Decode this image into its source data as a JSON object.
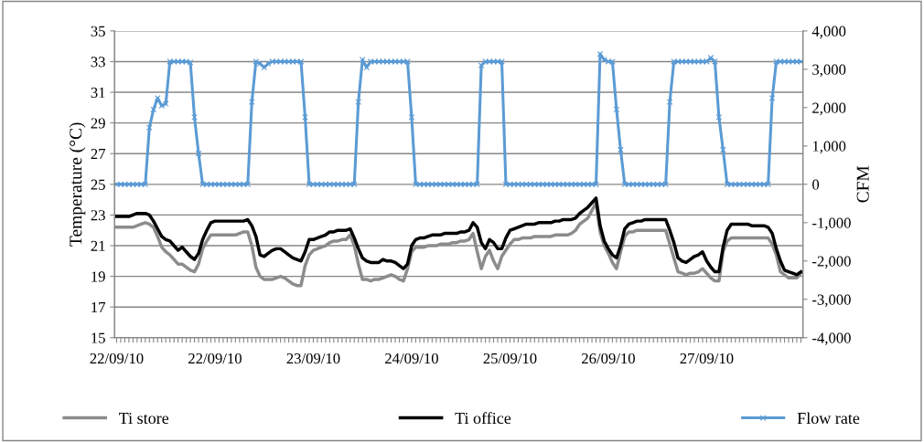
{
  "chart_data": {
    "type": "line",
    "ylabel": "Temperature (°C)",
    "y2label": "CFM",
    "categories": [
      "22/09/10",
      null,
      null,
      null,
      null,
      null,
      null,
      null,
      null,
      null,
      null,
      null,
      null,
      null,
      null,
      null,
      null,
      null,
      null,
      null,
      null,
      null,
      null,
      null,
      "22/09/10",
      null,
      null,
      null,
      null,
      null,
      null,
      null,
      null,
      null,
      null,
      null,
      null,
      null,
      null,
      null,
      null,
      null,
      null,
      null,
      null,
      null,
      null,
      null,
      "23/09/10",
      null,
      null,
      null,
      null,
      null,
      null,
      null,
      null,
      null,
      null,
      null,
      null,
      null,
      null,
      null,
      null,
      null,
      null,
      null,
      null,
      null,
      null,
      null,
      "24/09/10",
      null,
      null,
      null,
      null,
      null,
      null,
      null,
      null,
      null,
      null,
      null,
      null,
      null,
      null,
      null,
      null,
      null,
      null,
      null,
      null,
      null,
      null,
      null,
      "25/09/10",
      null,
      null,
      null,
      null,
      null,
      null,
      null,
      null,
      null,
      null,
      null,
      null,
      null,
      null,
      null,
      null,
      null,
      null,
      null,
      null,
      null,
      null,
      null,
      "26/09/10",
      null,
      null,
      null,
      null,
      null,
      null,
      null,
      null,
      null,
      null,
      null,
      null,
      null,
      null,
      null,
      null,
      null,
      null,
      null,
      null,
      null,
      null,
      null,
      "27/09/10",
      null,
      null,
      null,
      null,
      null,
      null,
      null,
      null,
      null,
      null,
      null,
      null,
      null,
      null,
      null,
      null,
      null,
      null,
      null,
      null,
      null,
      null,
      null
    ],
    "ylim": [
      15,
      35
    ],
    "yticks": [
      15,
      17,
      19,
      21,
      23,
      25,
      27,
      29,
      31,
      33,
      35
    ],
    "y2lim": [
      -4000,
      4000
    ],
    "y2ticks": [
      {
        "value": -4000,
        "label": "-4,000"
      },
      {
        "value": -3000,
        "label": "-3,000"
      },
      {
        "value": -2000,
        "label": "-2,000"
      },
      {
        "value": -1000,
        "label": "-1,000"
      },
      {
        "value": 0,
        "label": "0"
      },
      {
        "value": 1000,
        "label": "1,000"
      },
      {
        "value": 2000,
        "label": "2,000"
      },
      {
        "value": 3000,
        "label": "3,000"
      },
      {
        "value": 4000,
        "label": "4,000"
      }
    ],
    "grid": "y",
    "legend": "bottom",
    "series": [
      {
        "name": "Ti store",
        "color": "#8c8c8c",
        "marker": "none",
        "values": [
          22.2,
          22.2,
          22.2,
          22.2,
          22.2,
          22.3,
          22.4,
          22.5,
          22.4,
          22.2,
          21.6,
          20.9,
          20.6,
          20.4,
          20.1,
          19.8,
          19.8,
          19.6,
          19.4,
          19.3,
          19.8,
          20.8,
          21.3,
          21.7,
          21.7,
          21.7,
          21.7,
          21.7,
          21.7,
          21.7,
          21.8,
          21.9,
          21.9,
          21.0,
          19.6,
          19.0,
          18.8,
          18.8,
          18.8,
          18.9,
          19.0,
          18.9,
          18.7,
          18.5,
          18.4,
          18.4,
          19.7,
          20.4,
          20.7,
          20.8,
          20.9,
          21.0,
          21.2,
          21.3,
          21.3,
          21.4,
          21.4,
          21.7,
          21.0,
          19.8,
          18.8,
          18.8,
          18.7,
          18.8,
          18.8,
          18.9,
          19.0,
          19.1,
          19.0,
          18.8,
          18.7,
          19.5,
          20.6,
          20.9,
          20.9,
          20.9,
          21.0,
          21.0,
          21.0,
          21.1,
          21.1,
          21.1,
          21.2,
          21.2,
          21.3,
          21.3,
          21.4,
          21.8,
          20.6,
          19.5,
          20.3,
          20.7,
          20.0,
          19.5,
          20.3,
          20.7,
          21.1,
          21.4,
          21.4,
          21.5,
          21.5,
          21.5,
          21.6,
          21.6,
          21.6,
          21.6,
          21.6,
          21.7,
          21.7,
          21.7,
          21.7,
          21.8,
          22.0,
          22.4,
          22.6,
          22.8,
          23.3,
          23.8,
          21.9,
          21.0,
          20.5,
          19.9,
          19.5,
          20.6,
          21.6,
          21.9,
          21.9,
          22.0,
          22.0,
          22.0,
          22.0,
          22.0,
          22.0,
          22.0,
          22.0,
          21.1,
          20.2,
          19.3,
          19.2,
          19.1,
          19.2,
          19.2,
          19.3,
          19.5,
          19.2,
          18.9,
          18.7,
          18.7,
          20.6,
          21.3,
          21.5,
          21.5,
          21.5,
          21.5,
          21.5,
          21.5,
          21.5,
          21.5,
          21.5,
          21.5,
          21.1,
          20.4,
          19.3,
          19.1,
          18.9,
          18.9,
          18.9,
          19.2
        ]
      },
      {
        "name": "Ti office",
        "color": "#000000",
        "marker": "none",
        "values": [
          22.9,
          22.9,
          22.9,
          22.9,
          23.0,
          23.1,
          23.1,
          23.1,
          23.0,
          22.6,
          22.1,
          21.6,
          21.4,
          21.3,
          21.0,
          20.7,
          20.9,
          20.6,
          20.3,
          20.1,
          20.5,
          21.4,
          22.0,
          22.5,
          22.6,
          22.6,
          22.6,
          22.6,
          22.6,
          22.6,
          22.6,
          22.6,
          22.7,
          22.3,
          21.6,
          20.4,
          20.3,
          20.5,
          20.7,
          20.8,
          20.8,
          20.6,
          20.4,
          20.2,
          20.1,
          20.0,
          20.6,
          21.4,
          21.4,
          21.5,
          21.6,
          21.7,
          21.9,
          21.9,
          22.0,
          22.0,
          22.0,
          22.1,
          21.5,
          20.8,
          20.2,
          20.0,
          19.9,
          19.9,
          19.9,
          20.1,
          20.0,
          20.0,
          19.9,
          19.7,
          19.5,
          19.8,
          21.0,
          21.4,
          21.5,
          21.5,
          21.6,
          21.7,
          21.7,
          21.7,
          21.8,
          21.8,
          21.8,
          21.8,
          21.9,
          21.9,
          22.0,
          22.5,
          22.2,
          21.2,
          20.8,
          21.4,
          21.2,
          20.8,
          20.8,
          21.5,
          22.0,
          22.1,
          22.2,
          22.3,
          22.4,
          22.4,
          22.4,
          22.5,
          22.5,
          22.5,
          22.5,
          22.6,
          22.6,
          22.7,
          22.7,
          22.7,
          22.8,
          23.1,
          23.3,
          23.5,
          23.8,
          24.1,
          22.3,
          21.3,
          20.8,
          20.4,
          20.2,
          21.0,
          22.1,
          22.4,
          22.5,
          22.6,
          22.6,
          22.7,
          22.7,
          22.7,
          22.7,
          22.7,
          22.7,
          22.0,
          21.2,
          20.2,
          20.0,
          19.9,
          20.1,
          20.3,
          20.4,
          20.6,
          20.0,
          19.6,
          19.3,
          19.3,
          20.9,
          22.0,
          22.4,
          22.4,
          22.4,
          22.4,
          22.4,
          22.3,
          22.3,
          22.3,
          22.3,
          22.2,
          21.8,
          20.8,
          20.0,
          19.4,
          19.3,
          19.2,
          19.1,
          19.3
        ]
      },
      {
        "name": "Flow rate",
        "color": "#5b9bd5",
        "axis": "y2",
        "marker": "cross",
        "values": [
          0,
          0,
          0,
          0,
          0,
          0,
          0,
          0,
          1480,
          1950,
          2250,
          2050,
          2100,
          3200,
          3200,
          3200,
          3200,
          3200,
          3180,
          1750,
          800,
          0,
          0,
          0,
          0,
          0,
          0,
          0,
          0,
          0,
          0,
          0,
          0,
          2150,
          3200,
          3150,
          3050,
          3150,
          3200,
          3200,
          3200,
          3200,
          3200,
          3200,
          3200,
          3200,
          1750,
          0,
          0,
          0,
          0,
          0,
          0,
          0,
          0,
          0,
          0,
          0,
          0,
          2150,
          3250,
          3050,
          3200,
          3200,
          3200,
          3200,
          3200,
          3200,
          3200,
          3200,
          3200,
          3200,
          1750,
          0,
          0,
          0,
          0,
          0,
          0,
          0,
          0,
          0,
          0,
          0,
          0,
          0,
          0,
          0,
          0,
          3100,
          3200,
          3200,
          3200,
          3200,
          3200,
          0,
          0,
          0,
          0,
          0,
          0,
          0,
          0,
          0,
          0,
          0,
          0,
          0,
          0,
          0,
          0,
          0,
          0,
          0,
          0,
          0,
          0,
          0,
          3400,
          3250,
          3200,
          3200,
          1950,
          900,
          0,
          0,
          0,
          0,
          0,
          0,
          0,
          0,
          0,
          0,
          0,
          2150,
          3200,
          3200,
          3200,
          3200,
          3200,
          3200,
          3200,
          3200,
          3200,
          3300,
          3200,
          1750,
          900,
          0,
          0,
          0,
          0,
          0,
          0,
          0,
          0,
          0,
          0,
          0,
          2250,
          3200,
          3200,
          3200,
          3200,
          3200,
          3200,
          3200
        ]
      }
    ]
  }
}
